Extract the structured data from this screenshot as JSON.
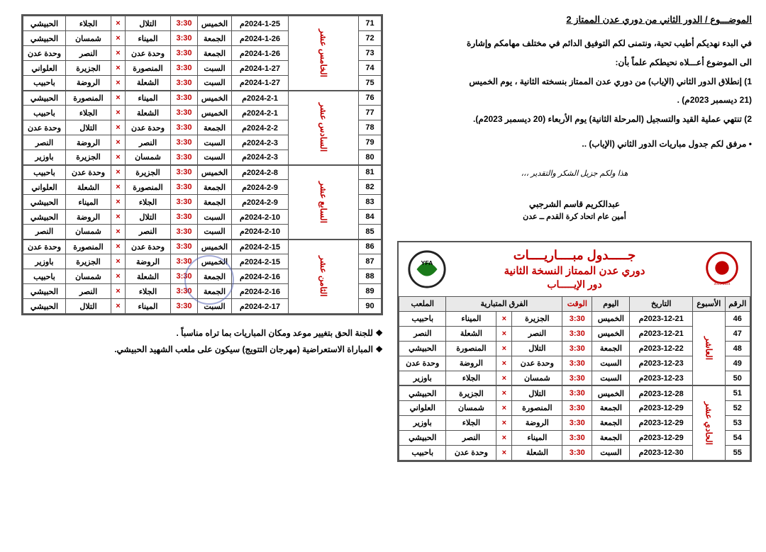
{
  "subject": "الموضـــوع / الدور الثاني من دوري عدن الممتاز 2",
  "intro": [
    "في البدء نهديكم أطيب تحية، ونتمنى لكم التوفيق الدائم في مختلف مهامكم وإشارة",
    "الى الموضوع أعـــلاه نحيطكم علماً بأن:",
    "1) إنطلاق الدور الثاني (الإياب) من دوري عدن الممتاز بنسخته الثانية ، يوم الخميس",
    "(21 ديسمبر 2023م) .",
    "2) تنتهي عملية القيد والتسجيل (المرحلة الثانية) يوم الأربعاء (20 ديسمبر 2023م)."
  ],
  "bullet": "• مرفق لكم جدول مباريات الدور الثاني (الإياب) ..",
  "thanks": "هذا ولكم جزيل الشكر والتقدير ،،،",
  "sig_name": "عبدالكريم قاسم الشرجبي",
  "sig_title": "أمين عام اتحاد كرة القدم ــ عدن",
  "header": {
    "t1": "جـــــدول مبــــاريــــات",
    "t2": "دوري عدن الممتاز النسخة الثانية",
    "t3": "دور الإيـــــاب"
  },
  "columns": [
    "الرقم",
    "الأسبوع",
    "التاريخ",
    "اليوم",
    "الوقت",
    "الفرق المتبارية",
    "الملعب"
  ],
  "time": "3:30",
  "vs": "×",
  "right_weeks": [
    {
      "label": "العاشر",
      "rows": [
        {
          "n": 46,
          "date": "2023-12-21م",
          "day": "الخميس",
          "a": "الجزيرة",
          "b": "الميناء",
          "v": "باحبيب"
        },
        {
          "n": 47,
          "date": "2023-12-21م",
          "day": "الخميس",
          "a": "النصر",
          "b": "الشعلة",
          "v": "النصر"
        },
        {
          "n": 48,
          "date": "2023-12-22م",
          "day": "الجمعة",
          "a": "التلال",
          "b": "المنصورة",
          "v": "الحبيشي"
        },
        {
          "n": 49,
          "date": "2023-12-23م",
          "day": "السبت",
          "a": "وحدة عدن",
          "b": "الروضة",
          "v": "وحدة عدن"
        },
        {
          "n": 50,
          "date": "2023-12-23م",
          "day": "السبت",
          "a": "شمسان",
          "b": "الجلاء",
          "v": "باوزير"
        }
      ]
    },
    {
      "label": "الحادي عشر",
      "rows": [
        {
          "n": 51,
          "date": "2023-12-28م",
          "day": "الخميس",
          "a": "التلال",
          "b": "الجزيرة",
          "v": "الحبيشي"
        },
        {
          "n": 52,
          "date": "2023-12-29م",
          "day": "الجمعة",
          "a": "المنصورة",
          "b": "شمسان",
          "v": "العلواني"
        },
        {
          "n": 53,
          "date": "2023-12-29م",
          "day": "الجمعة",
          "a": "الروضة",
          "b": "الجلاء",
          "v": "باوزير"
        },
        {
          "n": 54,
          "date": "2023-12-29م",
          "day": "الجمعة",
          "a": "الميناء",
          "b": "النصر",
          "v": "الحبيشي"
        },
        {
          "n": 55,
          "date": "2023-12-30م",
          "day": "السبت",
          "a": "الشعلة",
          "b": "وحدة عدن",
          "v": "باحبيب"
        }
      ]
    }
  ],
  "left_weeks": [
    {
      "label": "الخامس عشر",
      "rows": [
        {
          "n": 71,
          "date": "2024-1-25م",
          "day": "الخميس",
          "a": "التلال",
          "b": "الجلاء",
          "v": "الحبيشي"
        },
        {
          "n": 72,
          "date": "2024-1-26م",
          "day": "الجمعة",
          "a": "الميناء",
          "b": "شمسان",
          "v": "الحبيشي"
        },
        {
          "n": 73,
          "date": "2024-1-26م",
          "day": "الجمعة",
          "a": "وحدة عدن",
          "b": "النصر",
          "v": "وحدة عدن"
        },
        {
          "n": 74,
          "date": "2024-1-27م",
          "day": "السبت",
          "a": "المنصورة",
          "b": "الجزيرة",
          "v": "العلواني"
        },
        {
          "n": 75,
          "date": "2024-1-27م",
          "day": "السبت",
          "a": "الشعلة",
          "b": "الروضة",
          "v": "باحبيب"
        }
      ]
    },
    {
      "label": "السادس عشر",
      "rows": [
        {
          "n": 76,
          "date": "2024-2-1م",
          "day": "الخميس",
          "a": "الميناء",
          "b": "المنصورة",
          "v": "الحبيشي"
        },
        {
          "n": 77,
          "date": "2024-2-1م",
          "day": "الخميس",
          "a": "الشعلة",
          "b": "الجلاء",
          "v": "باحبيب"
        },
        {
          "n": 78,
          "date": "2024-2-2م",
          "day": "الجمعة",
          "a": "وحدة عدن",
          "b": "التلال",
          "v": "وحدة عدن"
        },
        {
          "n": 79,
          "date": "2024-2-3م",
          "day": "السبت",
          "a": "النصر",
          "b": "الروضة",
          "v": "النصر"
        },
        {
          "n": 80,
          "date": "2024-2-3م",
          "day": "السبت",
          "a": "شمسان",
          "b": "الجزيرة",
          "v": "باوزير"
        }
      ]
    },
    {
      "label": "السابع عشر",
      "rows": [
        {
          "n": 81,
          "date": "2024-2-8م",
          "day": "الخميس",
          "a": "الجزيرة",
          "b": "وحدة عدن",
          "v": "باحبيب"
        },
        {
          "n": 82,
          "date": "2024-2-9م",
          "day": "الجمعة",
          "a": "المنصورة",
          "b": "الشعلة",
          "v": "العلواني"
        },
        {
          "n": 83,
          "date": "2024-2-9م",
          "day": "الجمعة",
          "a": "الجلاء",
          "b": "الميناء",
          "v": "الحبيشي"
        },
        {
          "n": 84,
          "date": "2024-2-10م",
          "day": "السبت",
          "a": "التلال",
          "b": "الروضة",
          "v": "الحبيشي"
        },
        {
          "n": 85,
          "date": "2024-2-10م",
          "day": "السبت",
          "a": "النصر",
          "b": "شمسان",
          "v": "النصر"
        }
      ]
    },
    {
      "label": "الثامن عشر",
      "rows": [
        {
          "n": 86,
          "date": "2024-2-15م",
          "day": "الخميس",
          "a": "وحدة عدن",
          "b": "المنصورة",
          "v": "وحدة عدن"
        },
        {
          "n": 87,
          "date": "2024-2-15م",
          "day": "الخميس",
          "a": "الروضة",
          "b": "الجزيرة",
          "v": "باوزير"
        },
        {
          "n": 88,
          "date": "2024-2-16م",
          "day": "الجمعة",
          "a": "الشعلة",
          "b": "شمسان",
          "v": "باحبيب"
        },
        {
          "n": 89,
          "date": "2024-2-16م",
          "day": "الجمعة",
          "a": "الجلاء",
          "b": "النصر",
          "v": "الحبيشي"
        },
        {
          "n": 90,
          "date": "2024-2-17م",
          "day": "السبت",
          "a": "الميناء",
          "b": "التلال",
          "v": "الحبيشي"
        }
      ]
    }
  ],
  "footnotes": [
    "للجنة الحق بتغيير موعد ومكان المباريات بما تراه مناسباً .",
    "المباراة الاستعراضية (مهرجان التتويج) سيكون على ملعب الشهيد الحبيشي."
  ]
}
